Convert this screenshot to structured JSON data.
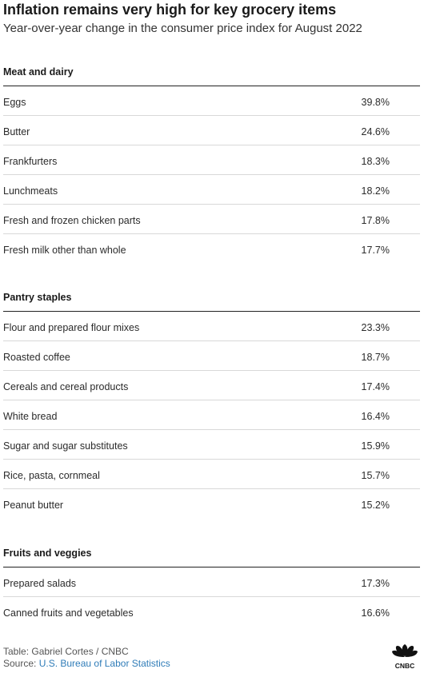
{
  "header": {
    "title": "Inflation remains very high for key grocery items",
    "subtitle": "Year-over-year change in the consumer price index for August 2022"
  },
  "chart_data": {
    "type": "table",
    "title": "Inflation remains very high for key grocery items",
    "subtitle": "Year-over-year change in the consumer price index for August 2022",
    "groups": [
      {
        "name": "Meat and dairy",
        "rows": [
          {
            "item": "Eggs",
            "value": "39.8%"
          },
          {
            "item": "Butter",
            "value": "24.6%"
          },
          {
            "item": "Frankfurters",
            "value": "18.3%"
          },
          {
            "item": "Lunchmeats",
            "value": "18.2%"
          },
          {
            "item": "Fresh and frozen chicken parts",
            "value": "17.8%"
          },
          {
            "item": "Fresh milk other than whole",
            "value": "17.7%"
          }
        ]
      },
      {
        "name": "Pantry staples",
        "rows": [
          {
            "item": "Flour and prepared flour mixes",
            "value": "23.3%"
          },
          {
            "item": "Roasted coffee",
            "value": "18.7%"
          },
          {
            "item": "Cereals and cereal products",
            "value": "17.4%"
          },
          {
            "item": "White bread",
            "value": "16.4%"
          },
          {
            "item": "Sugar and sugar substitutes",
            "value": "15.9%"
          },
          {
            "item": "Rice, pasta, cornmeal",
            "value": "15.7%"
          },
          {
            "item": "Peanut butter",
            "value": "15.2%"
          }
        ]
      },
      {
        "name": "Fruits and veggies",
        "rows": [
          {
            "item": "Prepared salads",
            "value": "17.3%"
          },
          {
            "item": "Canned fruits and vegetables",
            "value": "16.6%"
          }
        ]
      }
    ]
  },
  "footer": {
    "credit": "Table: Gabriel Cortes / CNBC",
    "source_prefix": "Source: ",
    "source_link": "U.S. Bureau of Labor Statistics"
  },
  "logo": {
    "name": "cnbc-peacock-logo",
    "wordmark": "CNBC",
    "colors": [
      "#111111"
    ]
  },
  "colors": {
    "link": "#2f7cb8",
    "rule_dark": "#222222",
    "rule_light": "#d8d8d8"
  }
}
